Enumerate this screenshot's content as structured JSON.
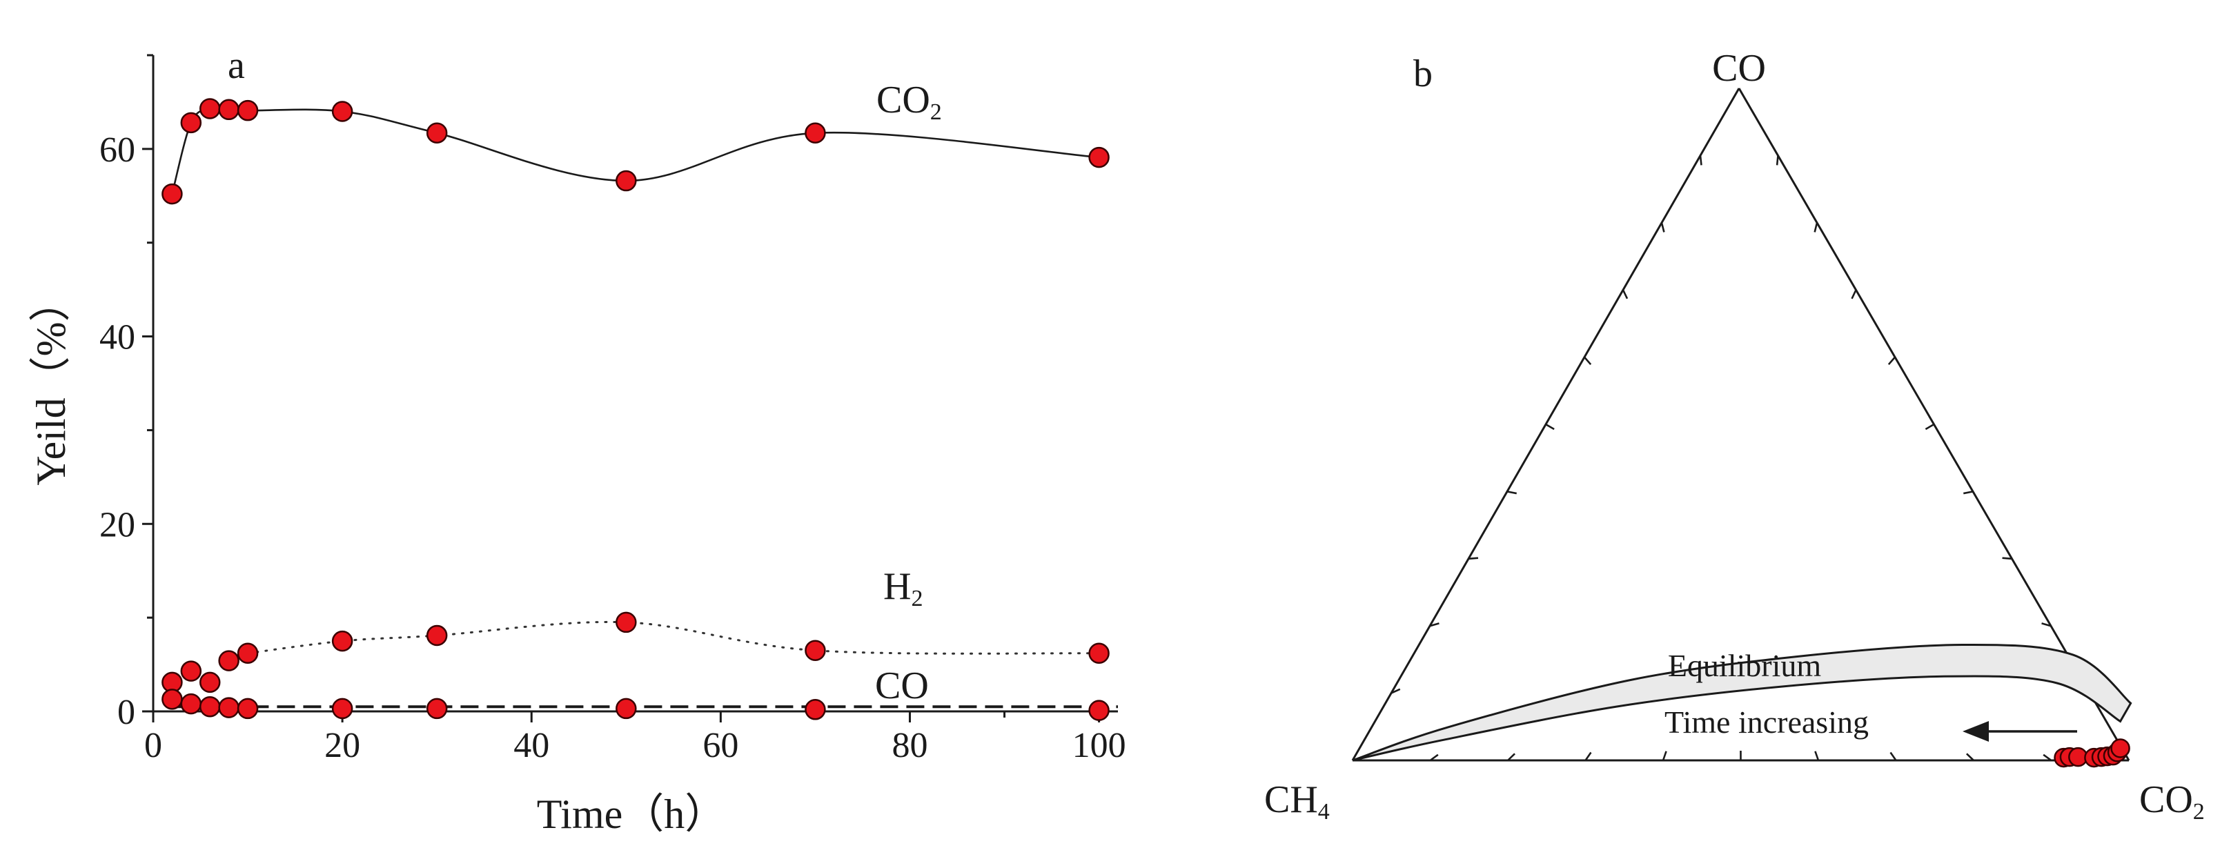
{
  "colors": {
    "marker_fill": "#e8141c",
    "marker_stroke": "#3a0000",
    "line": "#1a1a1a",
    "band_fill": "#eaeaea"
  },
  "panel_a": {
    "label": "a",
    "y_axis_title": "Yeild（%）",
    "x_axis_title": "Time（h）",
    "series_labels": {
      "co2": {
        "main": "CO",
        "sub": "2"
      },
      "h2": {
        "main": "H",
        "sub": "2"
      },
      "co": {
        "main": "CO",
        "sub": ""
      }
    }
  },
  "panel_b": {
    "label": "b",
    "vertex_top": {
      "main": "CO",
      "sub": ""
    },
    "vertex_left": {
      "main": "CH",
      "sub": "4"
    },
    "vertex_right": {
      "main": "CO",
      "sub": "2"
    },
    "band_label": "Equilibrium",
    "arrow_label": "Time increasing"
  },
  "chart_data": [
    {
      "type": "line",
      "panel": "a",
      "xlabel": "Time（h）",
      "ylabel": "Yeild（%）",
      "xlim": [
        0,
        102
      ],
      "ylim": [
        0,
        70
      ],
      "x_ticks": [
        0,
        20,
        40,
        60,
        80,
        100
      ],
      "y_ticks": [
        0,
        20,
        40,
        60
      ],
      "grid": false,
      "series": [
        {
          "name": "CO2",
          "line_style": "solid",
          "x": [
            2,
            4,
            6,
            8,
            10,
            20,
            30,
            50,
            70,
            100
          ],
          "y": [
            55.2,
            62.8,
            64.3,
            64.2,
            64.1,
            64.0,
            61.7,
            56.6,
            61.7,
            59.1
          ]
        },
        {
          "name": "H2",
          "line_style": "dotted",
          "x": [
            2,
            4,
            6,
            8,
            10,
            20,
            30,
            50,
            70,
            100
          ],
          "y": [
            3.1,
            4.3,
            3.1,
            5.4,
            6.2,
            7.5,
            8.1,
            9.5,
            6.5,
            6.2
          ]
        },
        {
          "name": "CO",
          "line_style": "dashed",
          "x": [
            2,
            4,
            6,
            8,
            10,
            20,
            30,
            50,
            70,
            100
          ],
          "y": [
            1.3,
            0.8,
            0.5,
            0.4,
            0.3,
            0.3,
            0.3,
            0.3,
            0.2,
            0.1
          ]
        }
      ]
    },
    {
      "type": "scatter",
      "panel": "b",
      "plot_kind": "ternary",
      "vertices": {
        "top": "CO",
        "left": "CH4",
        "right": "CO2"
      },
      "edge_ticks_per_side": 10,
      "equilibrium_band": {
        "lower": [
          {
            "co2": 0.0,
            "co": 0.0
          },
          {
            "co2": 0.1,
            "co": 0.03
          },
          {
            "co2": 0.3,
            "co": 0.08
          },
          {
            "co2": 0.5,
            "co": 0.11
          },
          {
            "co2": 0.7,
            "co": 0.125
          },
          {
            "co2": 0.85,
            "co": 0.115
          },
          {
            "co2": 0.96,
            "co": 0.058
          }
        ],
        "upper": [
          {
            "co2": 0.0,
            "co": 0.0
          },
          {
            "co2": 0.1,
            "co": 0.05
          },
          {
            "co2": 0.3,
            "co": 0.12
          },
          {
            "co2": 0.5,
            "co": 0.155
          },
          {
            "co2": 0.7,
            "co": 0.172
          },
          {
            "co2": 0.85,
            "co": 0.157
          },
          {
            "co2": 0.96,
            "co": 0.085
          }
        ]
      },
      "points": [
        {
          "co2": 0.914,
          "co": 0.004
        },
        {
          "co2": 0.921,
          "co": 0.005
        },
        {
          "co2": 0.932,
          "co": 0.005
        },
        {
          "co2": 0.953,
          "co": 0.004
        },
        {
          "co2": 0.962,
          "co": 0.005
        },
        {
          "co2": 0.969,
          "co": 0.006
        },
        {
          "co2": 0.976,
          "co": 0.007
        },
        {
          "co2": 0.979,
          "co": 0.012
        },
        {
          "co2": 0.98,
          "co": 0.018
        }
      ]
    }
  ]
}
